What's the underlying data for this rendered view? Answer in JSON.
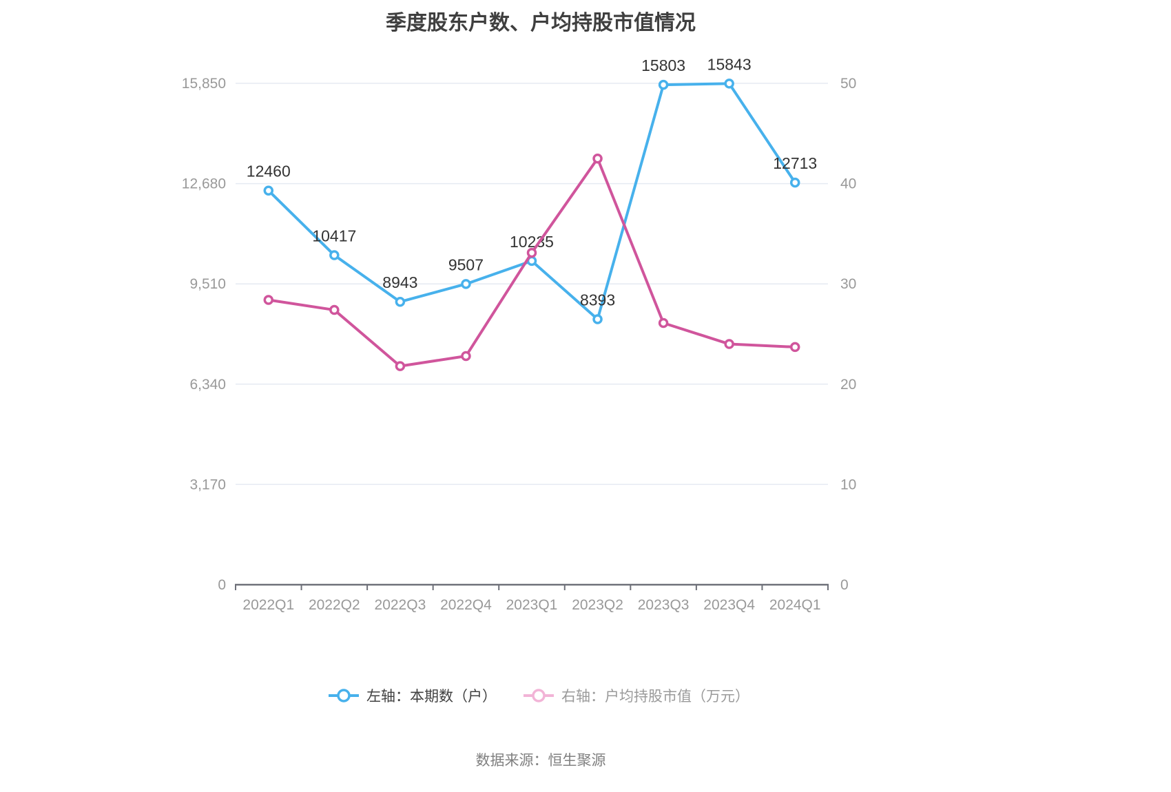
{
  "title": "季度股东户数、户均持股市值情况",
  "footer": {
    "source": "数据来源：恒生聚源"
  },
  "legend": {
    "items": [
      {
        "label": "左轴：本期数（户）",
        "icon_color": "#47b1ec",
        "icon": "line-with-circle-icon"
      },
      {
        "label": "右轴：户均持股市值（万元）",
        "icon_color": "#f2b4d7",
        "icon": "line-with-circle-icon"
      }
    ]
  },
  "chart_data": {
    "type": "line",
    "title": "季度股东户数、户均持股市值情况",
    "categories": [
      "2022Q1",
      "2022Q2",
      "2022Q3",
      "2022Q4",
      "2023Q1",
      "2023Q2",
      "2023Q3",
      "2023Q4",
      "2024Q1"
    ],
    "series": [
      {
        "id": "shareholder-count",
        "name": "左轴：本期数（户）",
        "axis": "left",
        "color": "#47b1ec",
        "show_labels": true,
        "values": [
          12460,
          10417,
          8943,
          9507,
          10235,
          8393,
          15803,
          15843,
          12713
        ]
      },
      {
        "id": "avg-holding-value",
        "name": "右轴：户均持股市值（万元）",
        "axis": "right",
        "color": "#d0559c",
        "show_labels": false,
        "values": [
          28.4,
          27.4,
          21.8,
          22.8,
          33.1,
          42.5,
          26.1,
          24,
          23.7
        ]
      }
    ],
    "left_axis": {
      "min": 0,
      "max": 15850,
      "tick_labels": [
        "0",
        "3,170",
        "6,340",
        "9,510",
        "12,680",
        "15,850"
      ]
    },
    "right_axis": {
      "min": 0,
      "max": 50,
      "tick_labels": [
        "0",
        "10",
        "20",
        "30",
        "40",
        "50"
      ]
    },
    "grid": true,
    "legend_position": "bottom",
    "style": {
      "grid_color": "#e5eaf2",
      "axis_line_color": "#6e7079",
      "axis_text_color": "#999999",
      "data_label_color": "#333333"
    }
  }
}
